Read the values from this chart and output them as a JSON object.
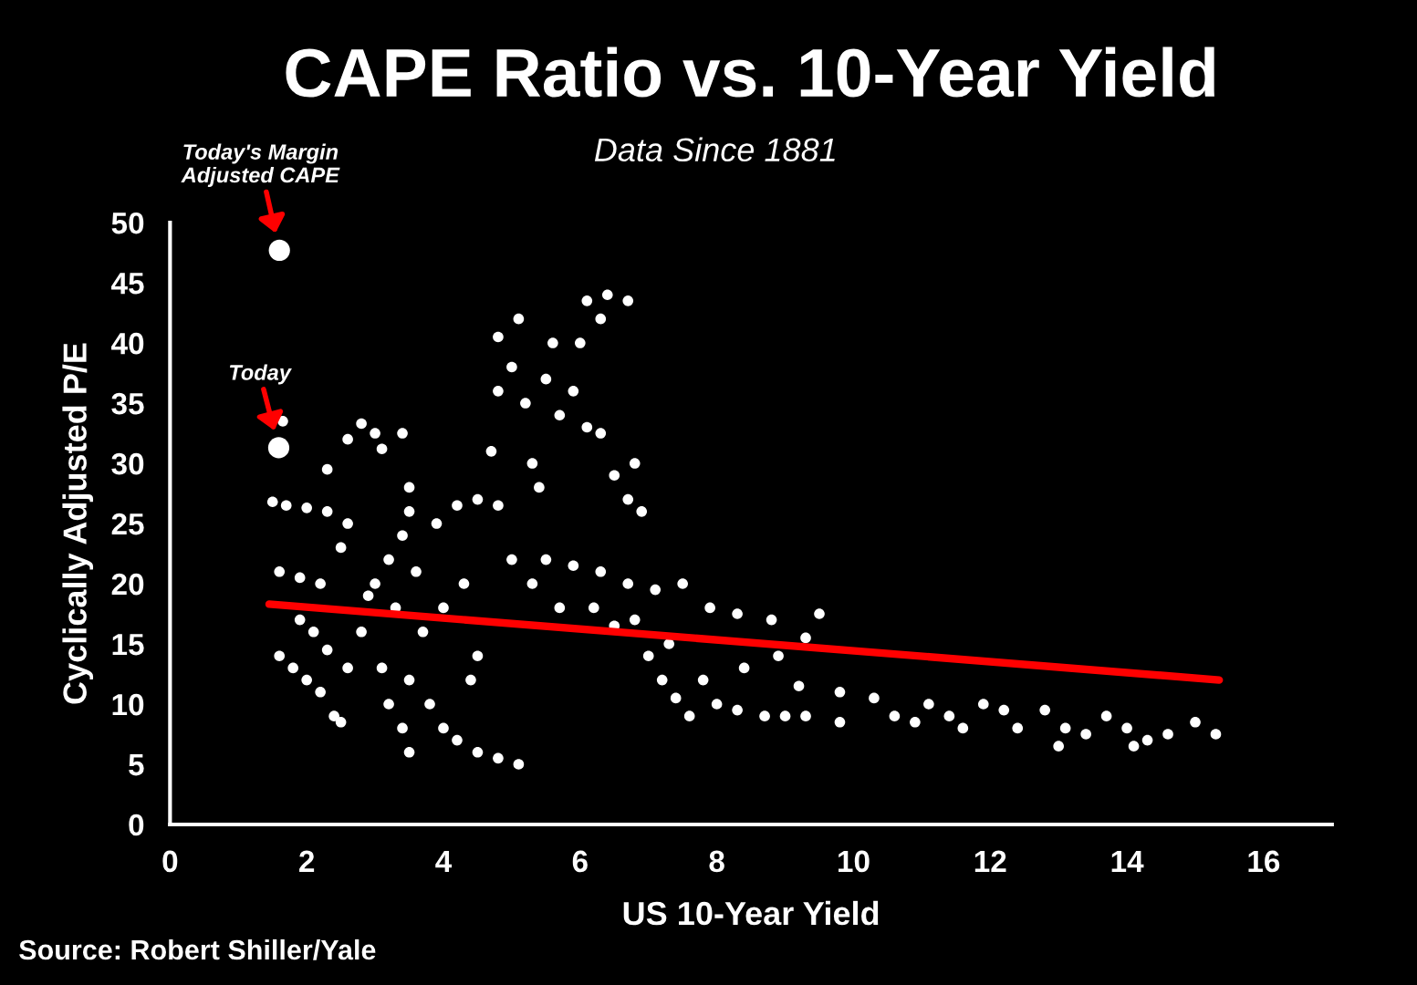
{
  "chart_data": {
    "type": "scatter",
    "title": "CAPE Ratio vs. 10-Year Yield",
    "subtitle": "Data Since 1881",
    "xlabel": "US 10-Year Yield",
    "ylabel": "Cyclically Adjusted P/E",
    "xlim": [
      0,
      17
    ],
    "xticks": [
      0,
      2,
      4,
      6,
      8,
      10,
      12,
      14,
      16
    ],
    "ylim": [
      0,
      50
    ],
    "yticks": [
      0,
      5,
      10,
      15,
      20,
      25,
      30,
      35,
      40,
      45,
      50
    ],
    "grid": false,
    "legend": false,
    "series": [
      {
        "marker": "circle",
        "color": "#ffffff",
        "x": [
          1.5,
          1.7,
          2.0,
          2.3,
          2.6,
          1.6,
          1.9,
          2.2,
          1.6,
          1.8,
          2.0,
          2.2,
          2.4,
          2.5,
          2.1,
          2.3,
          2.6,
          1.9,
          2.5,
          2.3,
          2.6,
          2.8,
          3.0,
          3.1,
          1.65,
          3.0,
          3.2,
          3.3,
          3.4,
          3.5,
          3.6,
          3.7,
          3.5,
          3.4,
          3.5,
          3.8,
          4.0,
          4.2,
          4.5,
          4.8,
          5.1,
          4.4,
          4.5,
          3.9,
          4.2,
          4.5,
          4.8,
          4.3,
          4.0,
          3.4,
          3.5,
          2.8,
          3.1,
          3.2,
          2.9,
          4.7,
          4.8,
          4.8,
          5.0,
          5.1,
          5.2,
          5.3,
          5.4,
          5.5,
          5.6,
          5.7,
          5.9,
          6.0,
          6.1,
          6.3,
          6.4,
          6.7,
          6.1,
          6.3,
          6.5,
          6.7,
          6.9,
          6.8,
          5.0,
          5.3,
          5.5,
          5.9,
          6.3,
          6.7,
          7.1,
          7.5,
          7.9,
          8.3,
          8.8,
          9.3,
          9.5,
          6.5,
          7.0,
          7.2,
          7.4,
          7.6,
          8.0,
          8.3,
          8.7,
          9.0,
          9.3,
          7.8,
          8.4,
          8.9,
          9.2,
          6.2,
          6.8,
          7.3,
          5.7,
          9.8,
          9.8,
          10.3,
          10.6,
          10.9,
          11.1,
          11.4,
          11.6,
          11.9,
          12.2,
          12.4,
          12.8,
          13.1,
          13.4,
          13.0,
          13.7,
          14.0,
          14.3,
          14.6,
          15.0,
          15.3,
          14.1
        ],
        "values": [
          26.8,
          26.5,
          26.3,
          26,
          25,
          21,
          20.5,
          20,
          14,
          13,
          12,
          11,
          9,
          8.5,
          16,
          14.5,
          13,
          17,
          23,
          29.5,
          32,
          33.3,
          32.5,
          31.2,
          33.5,
          20,
          22,
          18,
          24,
          26,
          21,
          16,
          12,
          8,
          6,
          10,
          8,
          7,
          6,
          5.5,
          5,
          12,
          14,
          25,
          26.5,
          27,
          26.5,
          20,
          18,
          32.5,
          28,
          16,
          13,
          10,
          19,
          31,
          36,
          40.5,
          38,
          42,
          35,
          30,
          28,
          37,
          40,
          34,
          36,
          40,
          43.5,
          42,
          44,
          43.5,
          33,
          32.5,
          29,
          27,
          26,
          30,
          22,
          20,
          22,
          21.5,
          21,
          20,
          19.5,
          20,
          18,
          17.5,
          17,
          15.5,
          17.5,
          16.5,
          14,
          12,
          10.5,
          9,
          10,
          9.5,
          9,
          9,
          9,
          12,
          13,
          14,
          11.5,
          18,
          17,
          15,
          18,
          11,
          8.5,
          10.5,
          9,
          8.5,
          10,
          9,
          8,
          10,
          9.5,
          8,
          9.5,
          8,
          7.5,
          6.5,
          9,
          8,
          7,
          7.5,
          8.5,
          7.5,
          6.5
        ]
      },
      {
        "marker": "circle",
        "color": "#ffffff",
        "x": [
          1.6,
          1.59
        ],
        "values": [
          47.7,
          31.3
        ]
      },
      {
        "type": "line",
        "color": "#ff0000",
        "x": [
          1.45,
          15.35
        ],
        "values": [
          18.3,
          12.0
        ]
      }
    ],
    "annotations": [
      {
        "text": "Today's Margin\nAdjusted CAPE",
        "x": 1.6,
        "y": 47.7
      },
      {
        "text": "Today",
        "x": 1.59,
        "y": 31.3
      },
      "Source: Robert Shiller/Yale"
    ]
  }
}
